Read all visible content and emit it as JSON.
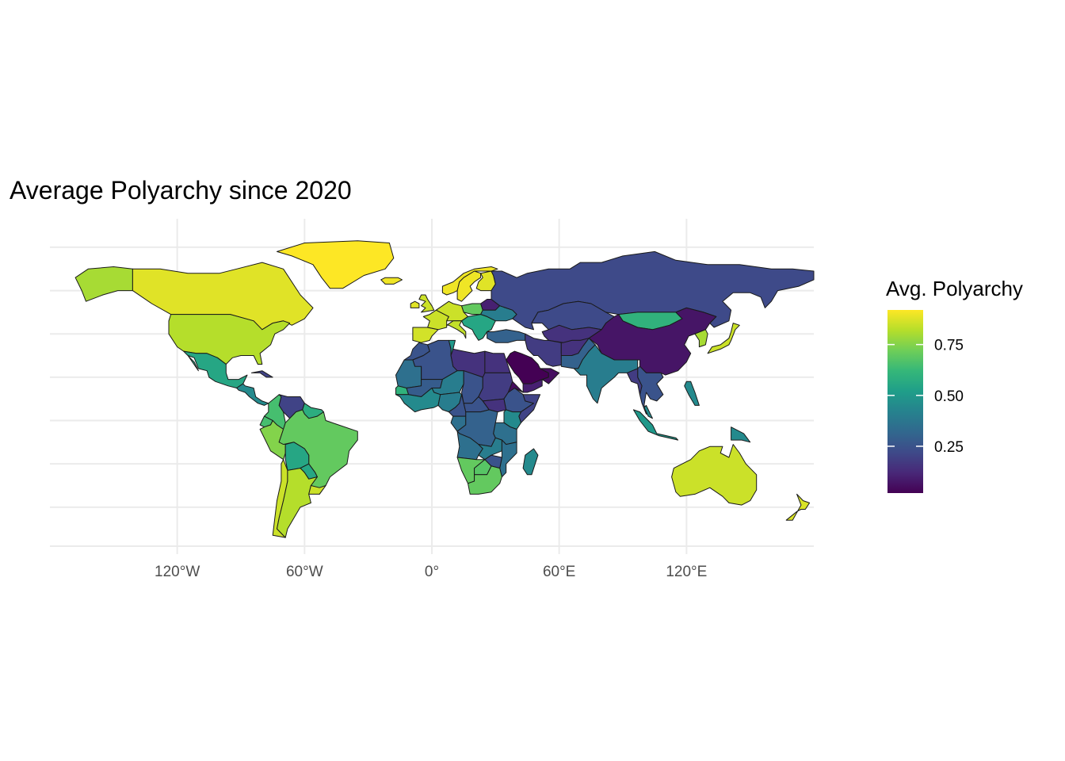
{
  "title": "Average Polyarchy since 2020",
  "chart_data": {
    "type": "choropleth",
    "title": "Average Polyarchy since 2020",
    "projection": "equirectangular",
    "grid": true,
    "x_axis": {
      "range": [
        -180,
        180
      ],
      "breaks": [
        -120,
        -60,
        0,
        60,
        120
      ],
      "tick_labels": [
        "120°W",
        "60°W",
        "0°",
        "60°E",
        "120°E"
      ]
    },
    "y_axis": {
      "range": [
        -58,
        84
      ],
      "show_labels": false
    },
    "legend": {
      "title": "Avg. Polyarchy",
      "position": "right",
      "scale": "viridis",
      "domain": [
        0.02,
        0.92
      ],
      "breaks": [
        0.25,
        0.5,
        0.75
      ],
      "tick_labels": [
        "0.25",
        "0.50",
        "0.75"
      ],
      "colors": [
        "#440154",
        "#482878",
        "#3e4a89",
        "#31688e",
        "#26828e",
        "#1f9e89",
        "#35b779",
        "#6ece58",
        "#b5de2b",
        "#fde725"
      ]
    },
    "regions": [
      {
        "name": "Alaska",
        "value": 0.8
      },
      {
        "name": "Canada",
        "value": 0.88
      },
      {
        "name": "Greenland",
        "value": 0.92
      },
      {
        "name": "United States",
        "value": 0.82
      },
      {
        "name": "Mexico",
        "value": 0.55
      },
      {
        "name": "Central America",
        "value": 0.45
      },
      {
        "name": "Cuba",
        "value": 0.2
      },
      {
        "name": "Colombia",
        "value": 0.65
      },
      {
        "name": "Venezuela",
        "value": 0.2
      },
      {
        "name": "Guyana",
        "value": 0.58
      },
      {
        "name": "Ecuador",
        "value": 0.65
      },
      {
        "name": "Peru",
        "value": 0.75
      },
      {
        "name": "Brazil",
        "value": 0.7
      },
      {
        "name": "Bolivia",
        "value": 0.55
      },
      {
        "name": "Paraguay",
        "value": 0.55
      },
      {
        "name": "Chile",
        "value": 0.85
      },
      {
        "name": "Argentina",
        "value": 0.82
      },
      {
        "name": "Uruguay",
        "value": 0.85
      },
      {
        "name": "Iceland",
        "value": 0.9
      },
      {
        "name": "Norway",
        "value": 0.9
      },
      {
        "name": "Sweden",
        "value": 0.9
      },
      {
        "name": "Finland",
        "value": 0.88
      },
      {
        "name": "United Kingdom",
        "value": 0.85
      },
      {
        "name": "Ireland",
        "value": 0.88
      },
      {
        "name": "Iberia",
        "value": 0.86
      },
      {
        "name": "France",
        "value": 0.85
      },
      {
        "name": "Central Europe",
        "value": 0.85
      },
      {
        "name": "Italy",
        "value": 0.84
      },
      {
        "name": "Poland",
        "value": 0.7
      },
      {
        "name": "Belarus",
        "value": 0.1
      },
      {
        "name": "Ukraine",
        "value": 0.4
      },
      {
        "name": "Balkans",
        "value": 0.55
      },
      {
        "name": "Turkey",
        "value": 0.3
      },
      {
        "name": "Russia",
        "value": 0.22
      },
      {
        "name": "Kazakhstan",
        "value": 0.22
      },
      {
        "name": "Central Asia",
        "value": 0.15
      },
      {
        "name": "Mongolia",
        "value": 0.6
      },
      {
        "name": "China",
        "value": 0.07
      },
      {
        "name": "Korea",
        "value": 0.8
      },
      {
        "name": "Japan",
        "value": 0.85
      },
      {
        "name": "Iran",
        "value": 0.18
      },
      {
        "name": "Afghanistan",
        "value": 0.15
      },
      {
        "name": "Pakistan",
        "value": 0.3
      },
      {
        "name": "India",
        "value": 0.4
      },
      {
        "name": "Saudi Arabia",
        "value": 0.02
      },
      {
        "name": "Arabian Gulf",
        "value": 0.05
      },
      {
        "name": "Yemen",
        "value": 0.1
      },
      {
        "name": "Mainland Southeast Asia",
        "value": 0.25
      },
      {
        "name": "Myanmar",
        "value": 0.18
      },
      {
        "name": "Malaysia",
        "value": 0.45
      },
      {
        "name": "Philippines",
        "value": 0.45
      },
      {
        "name": "Indonesia",
        "value": 0.5
      },
      {
        "name": "Papua New Guinea",
        "value": 0.45
      },
      {
        "name": "Australia",
        "value": 0.85
      },
      {
        "name": "New Zealand",
        "value": 0.87
      },
      {
        "name": "Morocco",
        "value": 0.25
      },
      {
        "name": "Algeria",
        "value": 0.25
      },
      {
        "name": "Tunisia",
        "value": 0.5
      },
      {
        "name": "Libya",
        "value": 0.15
      },
      {
        "name": "Egypt",
        "value": 0.15
      },
      {
        "name": "Mauritania",
        "value": 0.35
      },
      {
        "name": "Mali",
        "value": 0.28
      },
      {
        "name": "Niger",
        "value": 0.4
      },
      {
        "name": "Chad",
        "value": 0.25
      },
      {
        "name": "Sudan",
        "value": 0.18
      },
      {
        "name": "Senegal",
        "value": 0.6
      },
      {
        "name": "West Africa",
        "value": 0.45
      },
      {
        "name": "Nigeria",
        "value": 0.4
      },
      {
        "name": "Cameroon",
        "value": 0.25
      },
      {
        "name": "Central African Republic",
        "value": 0.25
      },
      {
        "name": "South Sudan",
        "value": 0.15
      },
      {
        "name": "Ethiopia",
        "value": 0.25
      },
      {
        "name": "Eritrea",
        "value": 0.05
      },
      {
        "name": "Somalia",
        "value": 0.2
      },
      {
        "name": "Kenya",
        "value": 0.45
      },
      {
        "name": "Gabon",
        "value": 0.35
      },
      {
        "name": "DR Congo",
        "value": 0.3
      },
      {
        "name": "Tanzania",
        "value": 0.35
      },
      {
        "name": "Angola",
        "value": 0.35
      },
      {
        "name": "Zambia",
        "value": 0.4
      },
      {
        "name": "Mozambique",
        "value": 0.35
      },
      {
        "name": "Namibia",
        "value": 0.7
      },
      {
        "name": "Botswana",
        "value": 0.68
      },
      {
        "name": "Zimbabwe",
        "value": 0.25
      },
      {
        "name": "South Africa",
        "value": 0.7
      },
      {
        "name": "Madagascar",
        "value": 0.45
      }
    ]
  }
}
